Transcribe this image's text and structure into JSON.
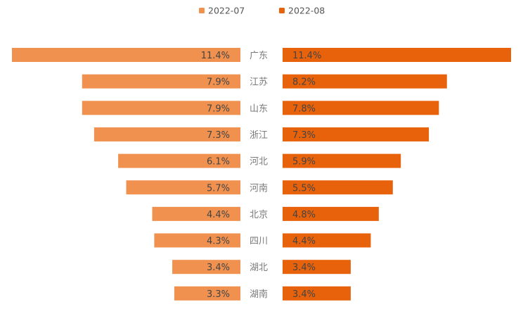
{
  "chart_data": {
    "type": "bar",
    "orientation": "horizontal",
    "layout": "mirrored-butterfly",
    "title": "",
    "xlabel": "",
    "ylabel": "",
    "legend_position": "top-center",
    "categories": [
      "广东",
      "江苏",
      "山东",
      "浙江",
      "河北",
      "河南",
      "北京",
      "四川",
      "湖北",
      "湖南"
    ],
    "xlim": [
      0,
      11.4
    ],
    "value_format": "{v}%",
    "series": [
      {
        "name": "2022-07",
        "side": "left",
        "color": "#f0914f",
        "values": [
          11.4,
          7.9,
          7.9,
          7.3,
          6.1,
          5.7,
          4.4,
          4.3,
          3.4,
          3.3
        ],
        "labels": [
          "11.4%",
          "7.9%",
          "7.9%",
          "7.3%",
          "6.1%",
          "5.7%",
          "4.4%",
          "4.3%",
          "3.4%",
          "3.3%"
        ]
      },
      {
        "name": "2022-08",
        "side": "right",
        "color": "#e8620c",
        "values": [
          11.4,
          8.2,
          7.8,
          7.3,
          5.9,
          5.5,
          4.8,
          4.4,
          3.4,
          3.4
        ],
        "labels": [
          "11.4%",
          "8.2%",
          "7.8%",
          "7.3%",
          "5.9%",
          "5.5%",
          "4.8%",
          "4.4%",
          "3.4%",
          "3.4%"
        ]
      }
    ]
  },
  "colors": {
    "category_text": "#7a7a7a",
    "label_text": "#444444",
    "legend_text": "#555555"
  }
}
